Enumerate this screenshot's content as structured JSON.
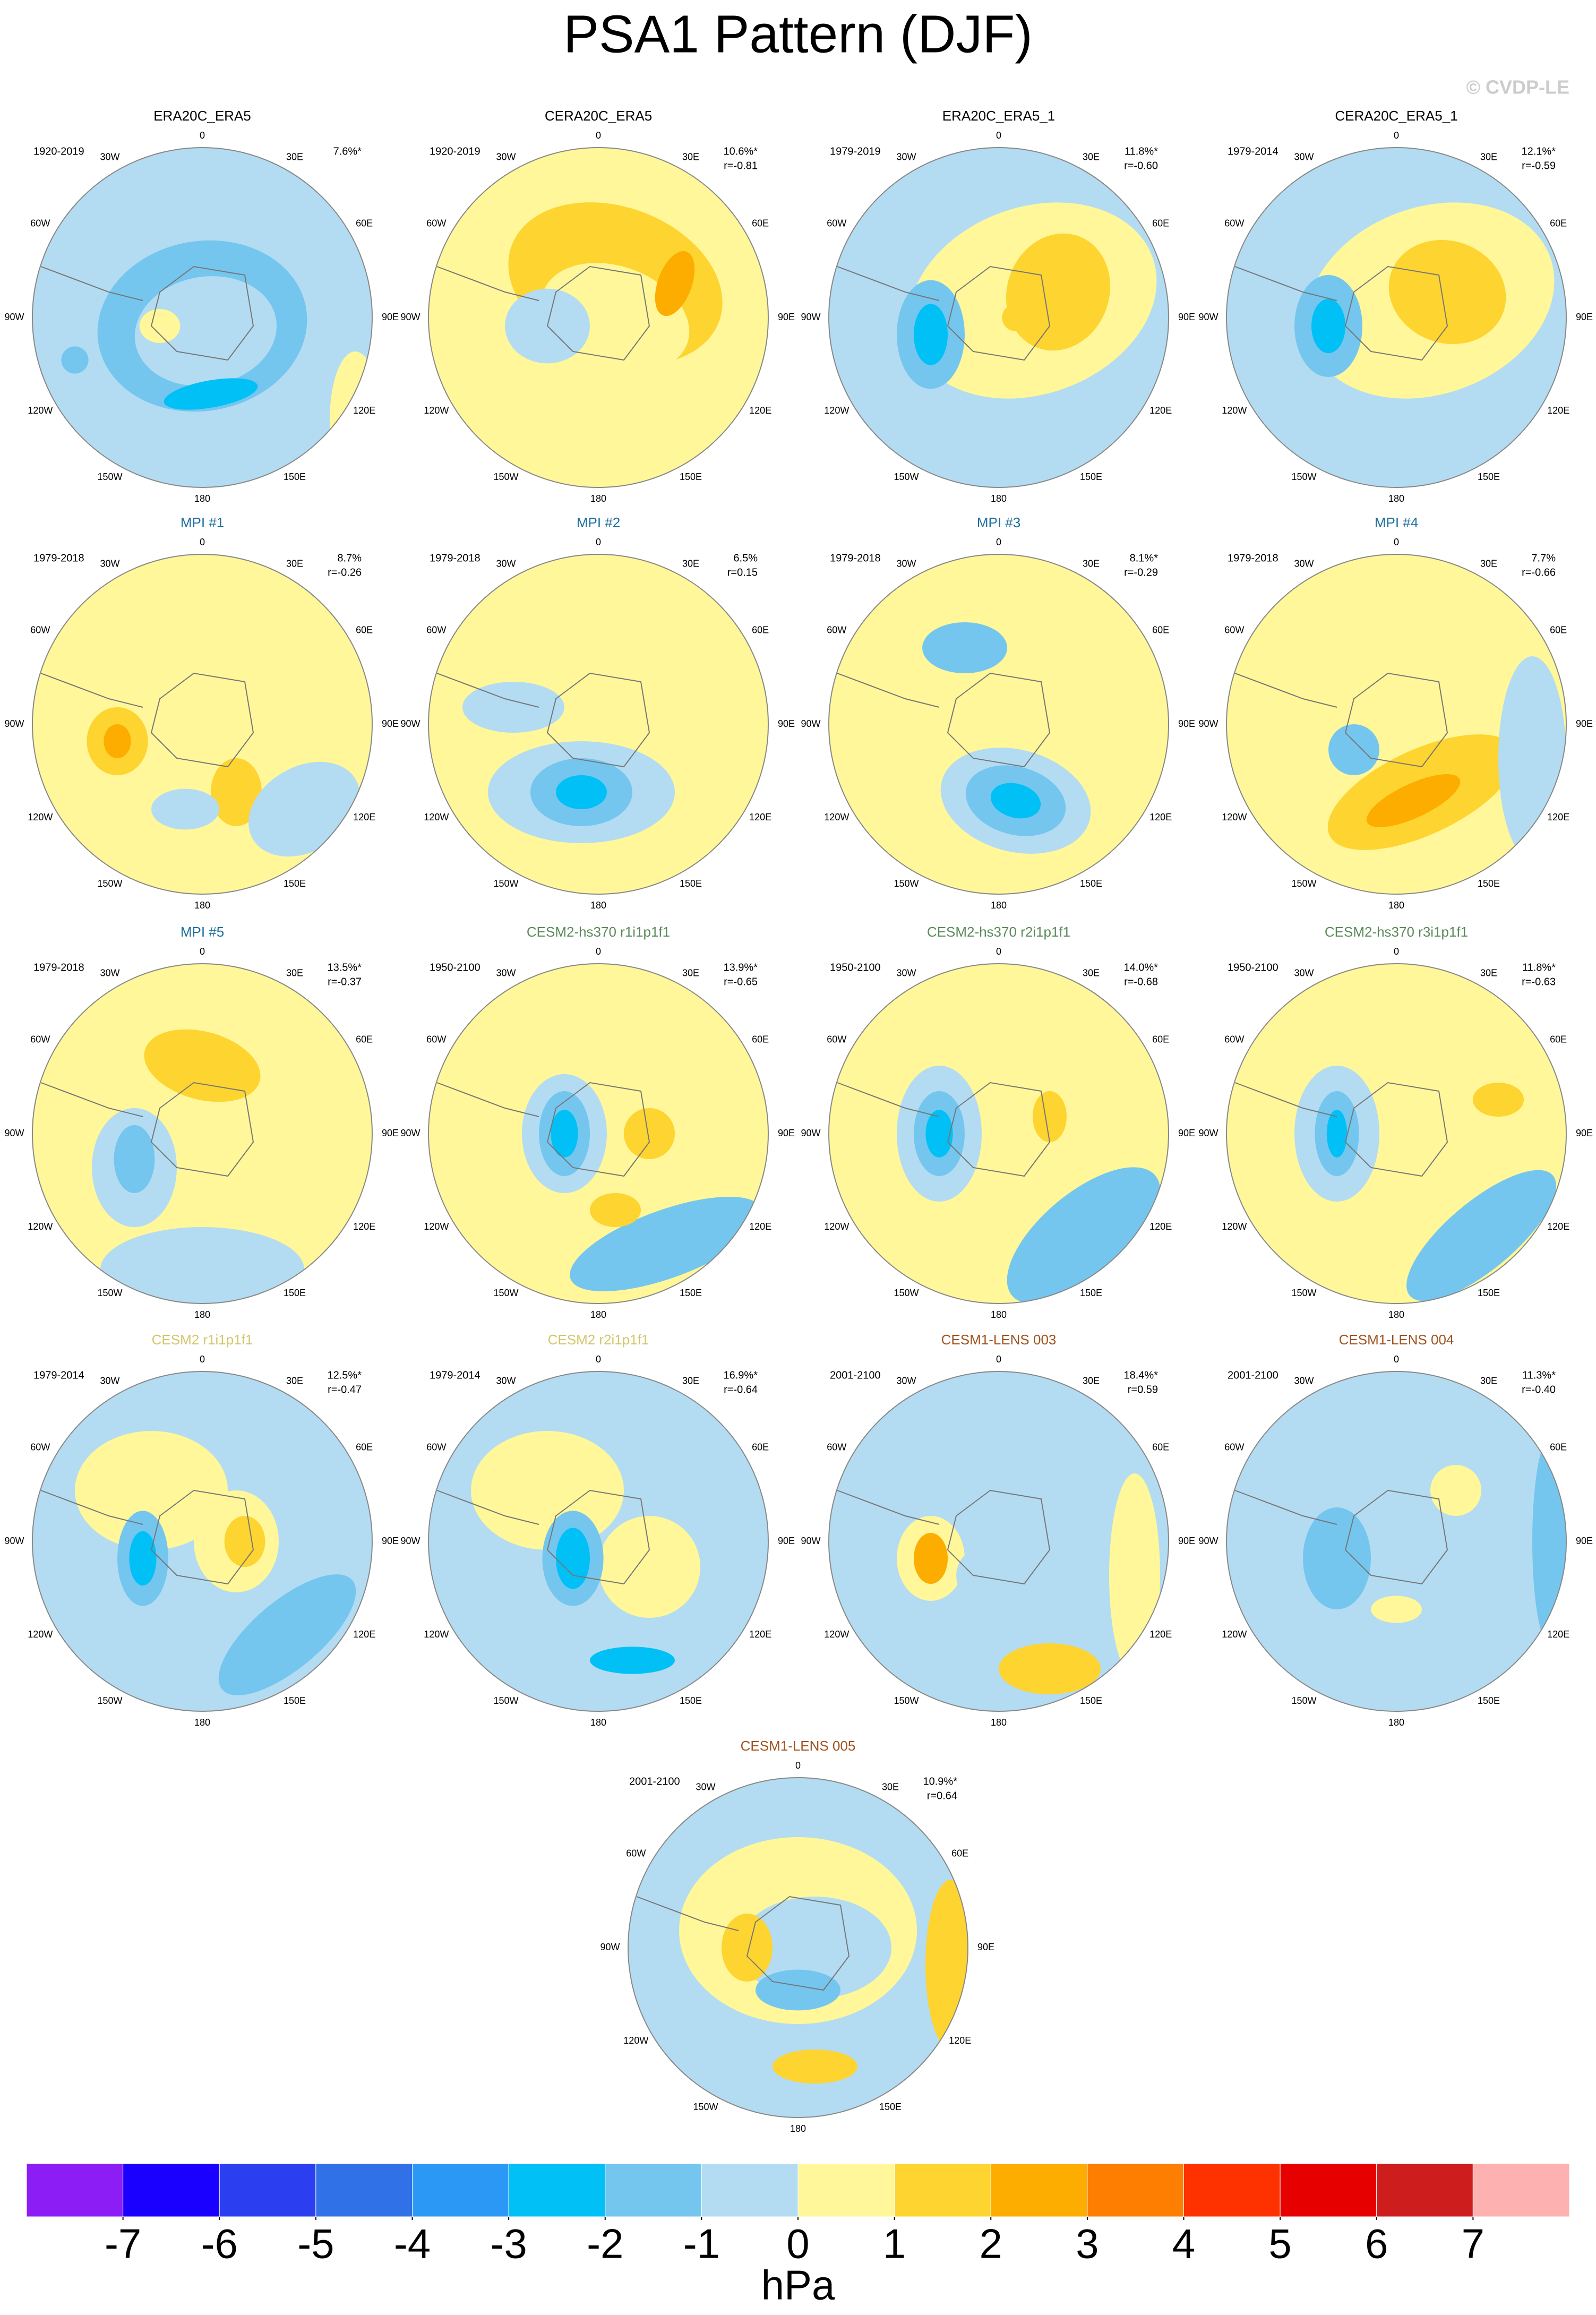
{
  "chart_data": {
    "type": "map-panels",
    "title": "PSA1 Pattern (DJF)",
    "watermark": "© CVDP-LE",
    "longitude_labels": [
      "0",
      "30E",
      "60E",
      "90E",
      "120E",
      "150E",
      "180",
      "150W",
      "120W",
      "90W",
      "60W",
      "30W"
    ],
    "panels": [
      {
        "title": "ERA20C_ERA5",
        "title_color": "#000000",
        "period": "1920-2019",
        "pct": "7.6%*"
      },
      {
        "title": "CERA20C_ERA5",
        "title_color": "#000000",
        "period": "1920-2019",
        "pct": "10.6%*",
        "r": "r=-0.81"
      },
      {
        "title": "ERA20C_ERA5_1",
        "title_color": "#000000",
        "period": "1979-2019",
        "pct": "11.8%*",
        "r": "r=-0.60"
      },
      {
        "title": "CERA20C_ERA5_1",
        "title_color": "#000000",
        "period": "1979-2014",
        "pct": "12.1%*",
        "r": "r=-0.59"
      },
      {
        "title": "MPI #1",
        "title_color": "#1f6f9c",
        "period": "1979-2018",
        "pct": "8.7%",
        "r": "r=-0.26"
      },
      {
        "title": "MPI #2",
        "title_color": "#1f6f9c",
        "period": "1979-2018",
        "pct": "6.5%",
        "r": "r=0.15"
      },
      {
        "title": "MPI #3",
        "title_color": "#1f6f9c",
        "period": "1979-2018",
        "pct": "8.1%*",
        "r": "r=-0.29"
      },
      {
        "title": "MPI #4",
        "title_color": "#1f6f9c",
        "period": "1979-2018",
        "pct": "7.7%",
        "r": "r=-0.66"
      },
      {
        "title": "MPI #5",
        "title_color": "#1f6f9c",
        "period": "1979-2018",
        "pct": "13.5%*",
        "r": "r=-0.37"
      },
      {
        "title": "CESM2-hs370 r1i1p1f1",
        "title_color": "#5a8a5a",
        "period": "1950-2100",
        "pct": "13.9%*",
        "r": "r=-0.65"
      },
      {
        "title": "CESM2-hs370 r2i1p1f1",
        "title_color": "#5a8a5a",
        "period": "1950-2100",
        "pct": "14.0%*",
        "r": "r=-0.68"
      },
      {
        "title": "CESM2-hs370 r3i1p1f1",
        "title_color": "#5a8a5a",
        "period": "1950-2100",
        "pct": "11.8%*",
        "r": "r=-0.63"
      },
      {
        "title": "CESM2 r1i1p1f1",
        "title_color": "#d4c56b",
        "period": "1979-2014",
        "pct": "12.5%*",
        "r": "r=-0.47"
      },
      {
        "title": "CESM2 r2i1p1f1",
        "title_color": "#d4c56b",
        "period": "1979-2014",
        "pct": "16.9%*",
        "r": "r=-0.64"
      },
      {
        "title": "CESM1-LENS 003",
        "title_color": "#a0521e",
        "period": "2001-2100",
        "pct": "18.4%*",
        "r": "r=0.59"
      },
      {
        "title": "CESM1-LENS 004",
        "title_color": "#a0521e",
        "period": "2001-2100",
        "pct": "11.3%*",
        "r": "r=-0.40"
      },
      {
        "title": "CESM1-LENS 005",
        "title_color": "#a0521e",
        "period": "2001-2100",
        "pct": "10.9%*",
        "r": "r=0.64"
      }
    ],
    "colorbar": {
      "colors": [
        "#8c1df5",
        "#1a00ff",
        "#2b3ff0",
        "#3171e8",
        "#2b98f5",
        "#00c0f5",
        "#74c6ef",
        "#b3dcf2",
        "#fff799",
        "#fdd430",
        "#fdac00",
        "#fd7e00",
        "#fd3200",
        "#e70000",
        "#cd1d1d",
        "#fdb1b1"
      ],
      "ticks": [
        -7,
        -6,
        -5,
        -4,
        -3,
        -2,
        -1,
        0,
        1,
        2,
        3,
        4,
        5,
        6,
        7
      ],
      "unit": "hPa"
    }
  }
}
